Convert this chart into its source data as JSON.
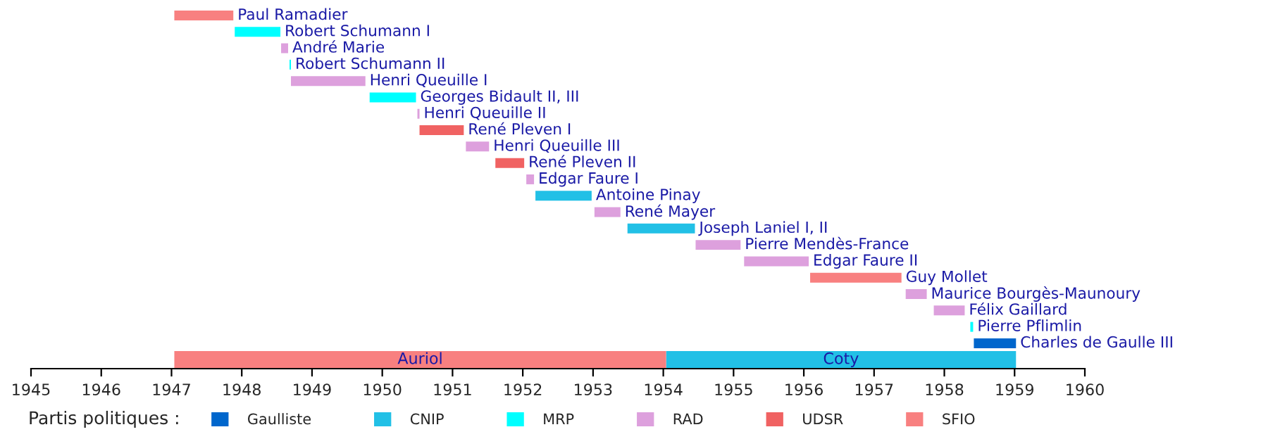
{
  "chart_data": {
    "type": "bar",
    "orientation": "horizontal",
    "categories": [
      "Paul Ramadier",
      "Robert Schumann I",
      "André Marie",
      "Robert Schumann II",
      "Henri Queuille I",
      "Georges Bidault II, III",
      "Henri Queuille II",
      "René Pleven I",
      "Henri Queuille III",
      "René Pleven II",
      "Edgar Faure I",
      "Antoine Pinay",
      "René Mayer",
      "Joseph Laniel I, II",
      "Pierre Mendès-France",
      "Edgar Faure II",
      "Guy Mollet",
      "Maurice Bourgès-Maunoury",
      "Félix Gaillard",
      "Pierre Pflimlin",
      "Charles de Gaulle III",
      null
    ],
    "legend_title": "Partis politiques :",
    "series": [
      {
        "name": "Gaulliste",
        "color": "#0066cc",
        "base": [
          null,
          null,
          null,
          null,
          null,
          null,
          null,
          null,
          null,
          null,
          null,
          null,
          null,
          null,
          null,
          null,
          null,
          null,
          null,
          null,
          1958.42,
          null
        ],
        "values": [
          null,
          null,
          null,
          null,
          null,
          null,
          null,
          null,
          null,
          null,
          null,
          null,
          null,
          null,
          null,
          null,
          null,
          null,
          null,
          null,
          0.6,
          null
        ]
      },
      {
        "name": "CNIP",
        "color": "#22c0e6",
        "base": [
          null,
          null,
          null,
          null,
          null,
          null,
          null,
          null,
          null,
          null,
          null,
          1952.18,
          null,
          1953.49,
          null,
          null,
          null,
          null,
          null,
          null,
          null,
          1954.04
        ],
        "values": [
          null,
          null,
          null,
          null,
          null,
          null,
          null,
          null,
          null,
          null,
          null,
          0.8,
          null,
          0.96,
          null,
          null,
          null,
          null,
          null,
          null,
          null,
          4.98
        ],
        "value_labels": [
          null,
          null,
          null,
          null,
          null,
          null,
          null,
          null,
          null,
          null,
          null,
          null,
          null,
          null,
          null,
          null,
          null,
          null,
          null,
          null,
          null,
          "Coty"
        ]
      },
      {
        "name": "MRP",
        "color": "#00ffff",
        "base": [
          null,
          1947.9,
          null,
          1948.68,
          null,
          1949.82,
          null,
          null,
          null,
          null,
          null,
          null,
          null,
          null,
          null,
          null,
          null,
          null,
          null,
          1958.37,
          null,
          null
        ],
        "values": [
          null,
          0.65,
          null,
          0.02,
          null,
          0.66,
          null,
          null,
          null,
          null,
          null,
          null,
          null,
          null,
          null,
          null,
          null,
          null,
          null,
          0.04,
          null,
          null
        ]
      },
      {
        "name": "RAD",
        "color": "#dda0dd",
        "base": [
          null,
          null,
          1948.56,
          null,
          1948.7,
          null,
          1950.5,
          null,
          1951.19,
          null,
          1952.05,
          null,
          1953.02,
          null,
          1954.46,
          1955.15,
          null,
          1957.45,
          1957.85,
          null,
          null,
          null
        ],
        "values": [
          null,
          null,
          0.1,
          null,
          1.06,
          null,
          0.03,
          null,
          0.33,
          null,
          0.11,
          null,
          0.37,
          null,
          0.64,
          0.92,
          null,
          0.3,
          0.44,
          null,
          null,
          null
        ]
      },
      {
        "name": "UDSR",
        "color": "#f06262",
        "base": [
          null,
          null,
          null,
          null,
          null,
          null,
          null,
          1950.53,
          null,
          1951.61,
          null,
          null,
          null,
          null,
          null,
          null,
          null,
          null,
          null,
          null,
          null,
          null
        ],
        "values": [
          null,
          null,
          null,
          null,
          null,
          null,
          null,
          0.63,
          null,
          0.41,
          null,
          null,
          null,
          null,
          null,
          null,
          null,
          null,
          null,
          null,
          null,
          null
        ]
      },
      {
        "name": "SFIO",
        "color": "#f88080",
        "base": [
          1947.04,
          null,
          null,
          null,
          null,
          null,
          null,
          null,
          null,
          null,
          null,
          null,
          null,
          null,
          null,
          null,
          1956.09,
          null,
          null,
          null,
          null,
          1947.04
        ],
        "values": [
          0.84,
          null,
          null,
          null,
          null,
          null,
          null,
          null,
          null,
          null,
          null,
          null,
          null,
          null,
          null,
          null,
          1.3,
          null,
          null,
          null,
          null,
          7.0
        ],
        "value_labels": [
          null,
          null,
          null,
          null,
          null,
          null,
          null,
          null,
          null,
          null,
          null,
          null,
          null,
          null,
          null,
          null,
          null,
          null,
          null,
          null,
          null,
          "Auriol"
        ]
      }
    ],
    "xlim": [
      1945,
      1960
    ],
    "xticks": [
      1945,
      1946,
      1947,
      1948,
      1949,
      1950,
      1951,
      1952,
      1953,
      1954,
      1955,
      1956,
      1957,
      1958,
      1959,
      1960
    ],
    "grid": false,
    "legend": "bottom"
  }
}
